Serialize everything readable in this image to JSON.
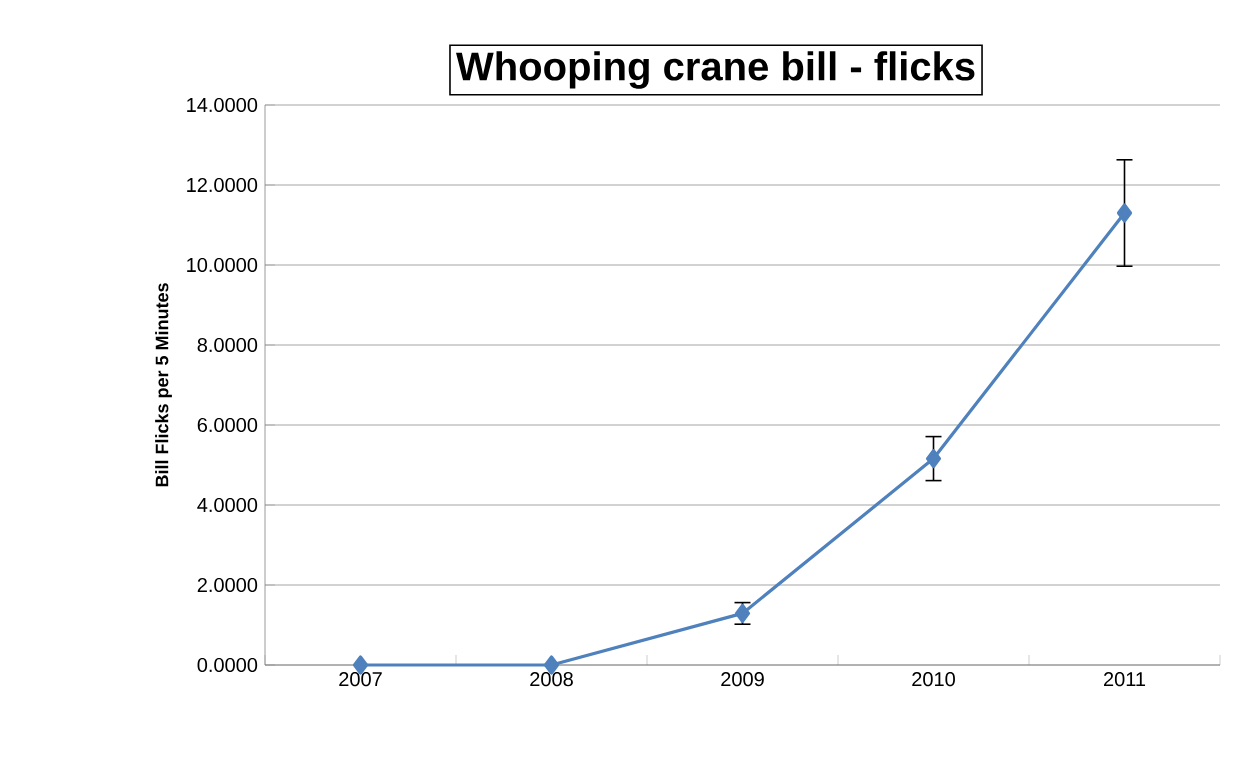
{
  "chart_data": {
    "type": "line",
    "title": "Whooping crane bill - flicks",
    "ylabel": "Bill Flicks per 5 Minutes",
    "categories": [
      "2007",
      "2008",
      "2009",
      "2010",
      "2011"
    ],
    "values": [
      0,
      0,
      1.29,
      5.16,
      11.3
    ],
    "errors": [
      null,
      null,
      0.27,
      0.55,
      1.33
    ],
    "color": "#4f81bd",
    "marker": "diamond",
    "grid": "y",
    "ylim": [
      0,
      14
    ],
    "yticks": [
      {
        "value": 0,
        "label": "0.0000"
      },
      {
        "value": 2,
        "label": "2.0000"
      },
      {
        "value": 4,
        "label": "4.0000"
      },
      {
        "value": 6,
        "label": "6.0000"
      },
      {
        "value": 8,
        "label": "8.0000"
      },
      {
        "value": 10,
        "label": "10.0000"
      },
      {
        "value": 12,
        "label": "12.0000"
      },
      {
        "value": 14,
        "label": "14.0000"
      }
    ]
  }
}
